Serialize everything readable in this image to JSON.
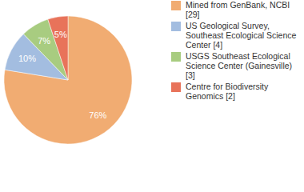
{
  "chart_data": {
    "type": "pie",
    "categories": [
      "Mined from GenBank, NCBI [29]",
      "US Geological Survey, Southeast Ecological Science Center [4]",
      "USGS Southeast Ecological Science Center (Gainesville) [3]",
      "Centre for Biodiversity Genomics [2]"
    ],
    "values": [
      76,
      10,
      7,
      5
    ],
    "value_labels": [
      "76%",
      "10%",
      "7%",
      "5%"
    ],
    "colors": [
      "#f1ac72",
      "#a3bde0",
      "#a8cc80",
      "#e8735a"
    ],
    "data_labels": true,
    "legend": "top-right"
  }
}
